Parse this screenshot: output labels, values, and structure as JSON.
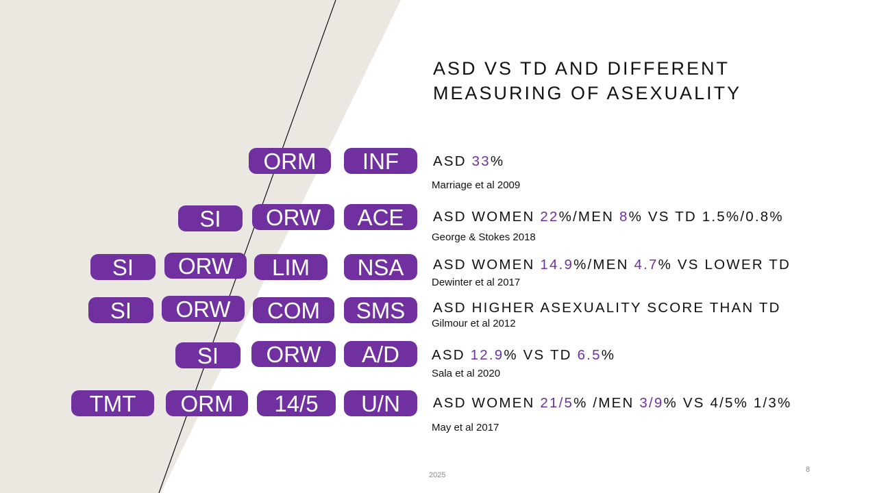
{
  "slide": {
    "title_lines": [
      "ASD VS TD AND DIFFERENT",
      "MEASURING OF ASEXUALITY"
    ],
    "footer_year": "2025",
    "page_number": "8",
    "accent_color": "#7030a0",
    "background_shape_color": "#ebe8e2"
  },
  "rows": [
    {
      "pills": [
        "ORM",
        "INF"
      ],
      "finding": [
        {
          "t": "ASD "
        },
        {
          "t": "33",
          "hl": true
        },
        {
          "t": "%"
        }
      ],
      "citation": "Marriage et al 2009"
    },
    {
      "pills": [
        "SI",
        "ORW",
        "ACE"
      ],
      "finding": [
        {
          "t": "ASD WOMEN "
        },
        {
          "t": "22",
          "hl": true
        },
        {
          "t": "%/MEN "
        },
        {
          "t": "8",
          "hl": true
        },
        {
          "t": "% VS TD 1.5%/0.8%"
        }
      ],
      "citation": "George & Stokes 2018"
    },
    {
      "pills": [
        "SI",
        "ORW",
        "LIM",
        "NSA"
      ],
      "finding": [
        {
          "t": "ASD WOMEN "
        },
        {
          "t": "14.9",
          "hl": true
        },
        {
          "t": "%/MEN "
        },
        {
          "t": "4.7",
          "hl": true
        },
        {
          "t": "% VS LOWER TD"
        }
      ],
      "citation": "Dewinter et al 2017"
    },
    {
      "pills": [
        "SI",
        "ORW",
        "COM",
        "SMS"
      ],
      "finding": [
        {
          "t": "ASD HIGHER ASEXUALITY SCORE THAN TD"
        }
      ],
      "citation": "Gilmour et al 2012"
    },
    {
      "pills": [
        "SI",
        "ORW",
        "A/D"
      ],
      "finding": [
        {
          "t": "ASD "
        },
        {
          "t": "12.9",
          "hl": true
        },
        {
          "t": "% VS TD "
        },
        {
          "t": "6.5",
          "hl": true
        },
        {
          "t": "%"
        }
      ],
      "citation": "Sala et al 2020"
    },
    {
      "pills": [
        "TMT",
        "ORM",
        "14/5",
        "U/N"
      ],
      "finding": [
        {
          "t": "ASD WOMEN "
        },
        {
          "t": "21/5",
          "hl": true
        },
        {
          "t": "% /MEN "
        },
        {
          "t": "3/9",
          "hl": true
        },
        {
          "t": "% VS 4/5% 1/3%"
        }
      ],
      "citation": "May et al 2017"
    }
  ]
}
